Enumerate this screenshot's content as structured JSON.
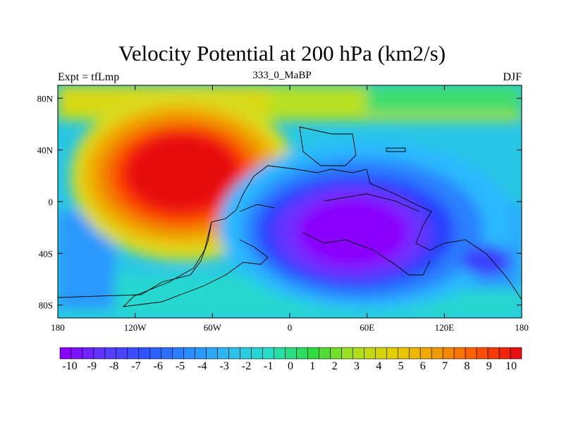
{
  "chart_data": {
    "type": "heatmap",
    "title": "Velocity Potential at 200 hPa (km2/s)",
    "left_subtitle": "Expt = tfLmp",
    "center_subtitle": "333_0_MaBP",
    "right_subtitle": "DJF",
    "x_ticks": [
      "180",
      "120W",
      "60W",
      "0",
      "60E",
      "120E",
      "180"
    ],
    "y_ticks": [
      "80N",
      "40N",
      "0",
      "40S",
      "80S"
    ],
    "xlim": [
      -180,
      180
    ],
    "ylim": [
      -90,
      90
    ],
    "colorbar_labels": [
      "-10",
      "-9",
      "-8",
      "-7",
      "-6",
      "-5",
      "-4",
      "-3",
      "-2",
      "-1",
      "0",
      "1",
      "2",
      "3",
      "4",
      "5",
      "6",
      "7",
      "8",
      "9",
      "10"
    ],
    "colorbar_levels": [
      -10,
      10
    ],
    "colormap": [
      "#8a00ff",
      "#5a3cff",
      "#2c55ff",
      "#2a8cff",
      "#2dbdf0",
      "#26e0c8",
      "#28dc40",
      "#a8e020",
      "#e6d000",
      "#f0a000",
      "#ff5a00",
      "#e81010"
    ],
    "features": {
      "positive_max": {
        "lon": -95,
        "lat": 20,
        "value": 10
      },
      "negative_min": {
        "lon": 45,
        "lat": -20,
        "value": -10
      }
    }
  }
}
